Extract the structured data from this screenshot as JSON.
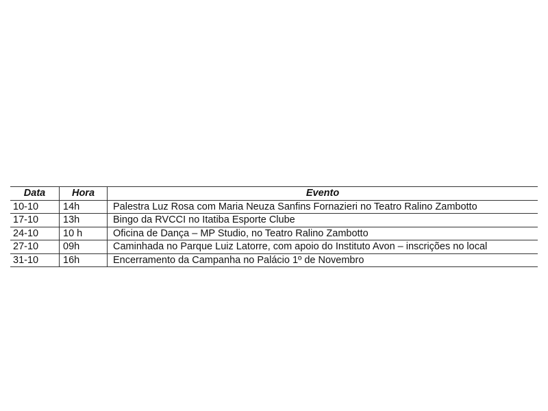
{
  "table": {
    "headers": [
      "Data",
      "Hora",
      "Evento"
    ],
    "rows": [
      [
        "10-10",
        "14h",
        "Palestra Luz Rosa com Maria Neuza Sanfins Fornazieri  no Teatro Ralino Zambotto"
      ],
      [
        "17-10",
        "13h",
        "Bingo da RVCCI no Itatiba Esporte Clube"
      ],
      [
        "24-10",
        "10 h",
        "Oficina de Dança – MP Studio, no Teatro Ralino Zambotto"
      ],
      [
        "27-10",
        "09h",
        "Caminhada no Parque Luiz Latorre, com apoio do Instituto  Avon – inscrições no local"
      ],
      [
        "31-10",
        "16h",
        "Encerramento da Campanha no Palácio 1º de Novembro"
      ]
    ]
  }
}
